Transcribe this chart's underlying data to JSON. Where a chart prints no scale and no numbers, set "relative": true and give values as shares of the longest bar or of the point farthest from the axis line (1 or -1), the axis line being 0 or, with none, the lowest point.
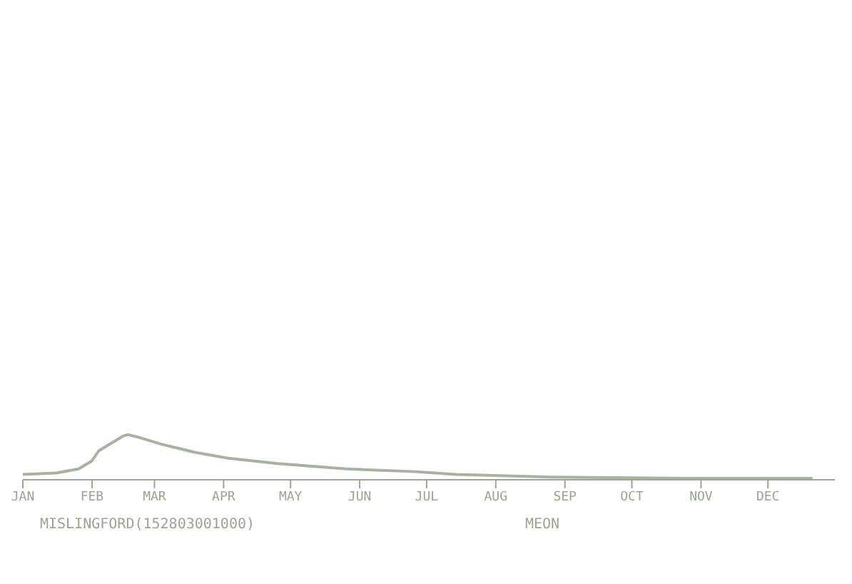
{
  "chart_data": {
    "type": "line",
    "relative": true,
    "x": [
      "--01-01",
      "--01-16",
      "--01-26",
      "--02-01",
      "--02-04",
      "--02-09",
      "--02-15",
      "--02-17",
      "--02-22",
      "--03-04",
      "--03-19",
      "--04-03",
      "--04-25",
      "--05-26",
      "--06-26",
      "--07-14",
      "--08-26",
      "--10-27",
      "--12-21"
    ],
    "xlim": [
      "--01-01",
      "--12-31"
    ],
    "xticks": [
      {
        "value": "--01-01",
        "label": "JAN"
      },
      {
        "value": "--02-01",
        "label": "FEB"
      },
      {
        "value": "--03-01",
        "label": "MAR"
      },
      {
        "value": "--04-01",
        "label": "APR"
      },
      {
        "value": "--05-01",
        "label": "MAY"
      },
      {
        "value": "--06-01",
        "label": "JUN"
      },
      {
        "value": "--07-01",
        "label": "JUL"
      },
      {
        "value": "--08-01",
        "label": "AUG"
      },
      {
        "value": "--09-01",
        "label": "SEP"
      },
      {
        "value": "--10-01",
        "label": "OCT"
      },
      {
        "value": "--11-01",
        "label": "NOV"
      },
      {
        "value": "--12-01",
        "label": "DEC"
      }
    ],
    "series": [
      {
        "color": "#a8b2a0",
        "values": [
          0.12,
          0.15,
          0.24,
          0.42,
          0.64,
          0.79,
          0.97,
          1,
          0.94,
          0.79,
          0.61,
          0.48,
          0.36,
          0.24,
          0.18,
          0.12,
          0.06,
          0.03,
          0.03
        ]
      }
    ],
    "annotations": [
      "MISLINGFORD(152803001000)",
      "MEON"
    ],
    "grid": false,
    "legend": false,
    "marker": "none",
    "line_style": "solid"
  }
}
